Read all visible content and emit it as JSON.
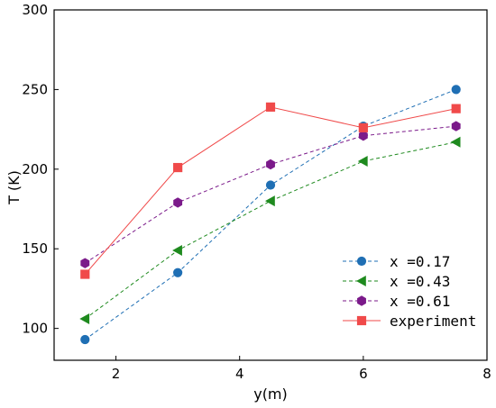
{
  "chart_data": {
    "type": "line",
    "xlabel": "y(m)",
    "ylabel": "T (K)",
    "xlim": [
      1,
      8
    ],
    "ylim": [
      80,
      300
    ],
    "xticks": [
      2,
      4,
      6,
      8
    ],
    "yticks": [
      100,
      150,
      200,
      250,
      300
    ],
    "grid": false,
    "legend_position": "bottom-right",
    "series": [
      {
        "name": "x =0.17",
        "color": "#1f6fb4",
        "marker": "circle",
        "line_style": "dashed",
        "x": [
          1.5,
          3.0,
          4.5,
          6.0,
          7.5
        ],
        "y": [
          93,
          135,
          190,
          227,
          250
        ]
      },
      {
        "name": "x =0.43",
        "color": "#1e8a1e",
        "marker": "triangle-left",
        "line_style": "dashed",
        "x": [
          1.5,
          3.0,
          4.5,
          6.0,
          7.5
        ],
        "y": [
          106,
          149,
          180,
          205,
          217
        ]
      },
      {
        "name": "x =0.61",
        "color": "#7b1a8a",
        "marker": "hexagon",
        "line_style": "dashed",
        "x": [
          1.5,
          3.0,
          4.5,
          6.0,
          7.5
        ],
        "y": [
          141,
          179,
          203,
          221,
          227
        ]
      },
      {
        "name": "experiment",
        "color": "#f04a4a",
        "marker": "square",
        "line_style": "solid",
        "x": [
          1.5,
          3.0,
          4.5,
          6.0,
          7.5
        ],
        "y": [
          134,
          201,
          239,
          226,
          238
        ]
      }
    ]
  }
}
